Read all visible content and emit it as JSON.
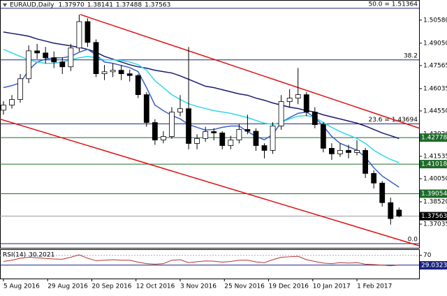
{
  "chart_data": {
    "type": "candlestick",
    "title": "EURAUD,Daily",
    "header_ohlc": [
      {
        "value": 1.3797,
        "label": "1.37970"
      },
      1.38141,
      1.37488,
      1.37563
    ],
    "xlim": [
      -0.41,
      49.38
    ],
    "ylim": [
      1.3546,
      1.5187
    ],
    "xticks": [
      {
        "value": 0,
        "label": "5 Aug 2016"
      },
      {
        "value": 5.25,
        "label": "29 Aug 2016"
      },
      {
        "value": 10.5,
        "label": "20 Sep 2016"
      },
      {
        "value": 15.75,
        "label": "12 Oct 2016"
      },
      {
        "value": 21,
        "label": "3 Nov 2016"
      },
      {
        "value": 26.25,
        "label": "25 Nov 2016"
      },
      {
        "value": 31.5,
        "label": "19 Dec 2016"
      },
      {
        "value": 36.75,
        "label": "10 Jan 2017"
      },
      {
        "value": 42,
        "label": "1 Feb 2017"
      }
    ],
    "yticks": [
      {
        "value": 1.5058,
        "label": "1.50580"
      },
      {
        "value": 1.4905,
        "label": "1.49050"
      },
      1.47565,
      1.46035,
      {
        "value": 1.4455,
        "label": "1.44550"
      },
      {
        "value": 1.4302,
        "label": "1.43020"
      },
      1.41535,
      {
        "value": 1.4005,
        "label": "1.40050"
      },
      {
        "value": 1.3852,
        "label": "1.38520"
      },
      1.37035
    ],
    "candles": [
      [
        1.446,
        1.452,
        1.443,
        1.4494
      ],
      [
        1.4494,
        1.456,
        1.447,
        1.4531
      ],
      [
        1.4531,
        1.47,
        1.451,
        1.4669
      ],
      [
        1.4669,
        1.489,
        1.464,
        1.4854
      ],
      [
        1.4854,
        1.49,
        1.48,
        1.484
      ],
      [
        1.484,
        1.488,
        1.477,
        1.4808
      ],
      [
        1.4808,
        1.485,
        1.474,
        1.478
      ],
      [
        1.478,
        1.481,
        1.47,
        1.4748
      ],
      [
        1.4748,
        1.49,
        1.472,
        1.4873
      ],
      [
        1.4873,
        1.5095,
        1.485,
        1.5048
      ],
      [
        1.5048,
        1.507,
        1.488,
        1.491
      ],
      [
        1.491,
        1.493,
        1.468,
        1.4702
      ],
      [
        1.4702,
        1.476,
        1.466,
        1.4715
      ],
      [
        1.4715,
        1.477,
        1.468,
        1.4725
      ],
      [
        1.4725,
        1.476,
        1.466,
        1.4702
      ],
      [
        1.4702,
        1.473,
        1.465,
        1.469
      ],
      [
        1.469,
        1.47,
        1.454,
        1.4563
      ],
      [
        1.4563,
        1.458,
        1.435,
        1.4378
      ],
      [
        1.4378,
        1.44,
        1.423,
        1.4262
      ],
      [
        1.4262,
        1.432,
        1.424,
        1.4285
      ],
      [
        1.4285,
        1.448,
        1.427,
        1.4447
      ],
      [
        1.4447,
        1.456,
        1.442,
        1.447
      ],
      [
        1.447,
        1.488,
        1.42,
        1.4239
      ],
      [
        1.4239,
        1.43,
        1.42,
        1.4272
      ],
      [
        1.4272,
        1.435,
        1.425,
        1.4318
      ],
      [
        1.4318,
        1.434,
        1.426,
        1.4309
      ],
      [
        1.4309,
        1.432,
        1.42,
        1.4225
      ],
      [
        1.4225,
        1.429,
        1.42,
        1.4262
      ],
      [
        1.4262,
        1.437,
        1.424,
        1.4332
      ],
      [
        1.4332,
        1.443,
        1.43,
        1.432
      ],
      [
        1.432,
        1.434,
        1.419,
        1.4225
      ],
      [
        1.4225,
        1.424,
        1.414,
        1.4193
      ],
      [
        1.4193,
        1.438,
        1.417,
        1.4355
      ],
      [
        1.4355,
        1.456,
        1.433,
        1.4517
      ],
      [
        1.4517,
        1.46,
        1.448,
        1.454
      ],
      [
        1.454,
        1.474,
        1.45,
        1.4563
      ],
      [
        1.4563,
        1.458,
        1.442,
        1.4447
      ],
      [
        1.4447,
        1.448,
        1.434,
        1.4364
      ],
      [
        1.4364,
        1.438,
        1.418,
        1.4207
      ],
      [
        1.4207,
        1.424,
        1.413,
        1.417
      ],
      [
        1.417,
        1.424,
        1.415,
        1.4193
      ],
      [
        1.4193,
        1.423,
        1.414,
        1.4179
      ],
      [
        1.4179,
        1.426,
        1.416,
        1.4193
      ],
      [
        1.4193,
        1.421,
        1.401,
        1.404
      ],
      [
        1.404,
        1.406,
        1.394,
        1.3976
      ],
      [
        1.3976,
        1.399,
        1.382,
        1.3846
      ],
      [
        1.3846,
        1.388,
        1.37,
        1.374
      ],
      [
        1.3797,
        1.38141,
        1.37488,
        1.37563
      ]
    ],
    "series": [
      {
        "color": "#1a1a6e",
        "values": [
          1.4979,
          1.497,
          1.4961,
          1.4951,
          1.4933,
          1.4919,
          1.4905,
          1.4896,
          1.4887,
          1.4877,
          1.4864,
          1.4845,
          1.4817,
          1.4799,
          1.478,
          1.4762,
          1.4748,
          1.4739,
          1.4725,
          1.4716,
          1.4707,
          1.4688,
          1.4665,
          1.4642,
          1.4619,
          1.461,
          1.4596,
          1.4582,
          1.4568,
          1.4559,
          1.454,
          1.4526,
          1.4508,
          1.4494,
          1.448,
          1.4471,
          1.4457,
          1.4448,
          1.4429,
          1.4415,
          1.4402,
          1.4388,
          1.4374,
          1.4355,
          1.4332,
          1.4309,
          1.4291,
          1.4272
        ]
      },
      {
        "color": "#3a5fc8",
        "values": [
          1.461,
          1.4623,
          1.4642,
          1.4725,
          1.478,
          1.4799,
          1.4808,
          1.4808,
          1.4817,
          1.4845,
          1.4864,
          1.4827,
          1.478,
          1.4771,
          1.4757,
          1.4743,
          1.4716,
          1.461,
          1.4494,
          1.4457,
          1.4425,
          1.4402,
          1.4365,
          1.4346,
          1.4328,
          1.4332,
          1.4346,
          1.4355,
          1.4355,
          1.4318,
          1.4286,
          1.4263,
          1.43,
          1.4379,
          1.4411,
          1.4439,
          1.4448,
          1.4411,
          1.4355,
          1.4286,
          1.424,
          1.4217,
          1.4194,
          1.4148,
          1.4078,
          1.4023,
          1.3986,
          1.3949
        ]
      },
      {
        "color": "#2fd9e8",
        "values": [
          1.4864,
          1.4841,
          1.4817,
          1.4794,
          1.478,
          1.4771,
          1.4771,
          1.478,
          1.4794,
          1.4808,
          1.4817,
          1.4808,
          1.4794,
          1.4794,
          1.479,
          1.478,
          1.4762,
          1.4725,
          1.4656,
          1.461,
          1.4563,
          1.4531,
          1.4503,
          1.4485,
          1.4471,
          1.4457,
          1.4448,
          1.4439,
          1.4425,
          1.4411,
          1.4392,
          1.4374,
          1.4365,
          1.4379,
          1.4402,
          1.442,
          1.4425,
          1.4411,
          1.4379,
          1.4346,
          1.4318,
          1.4295,
          1.4272,
          1.424,
          1.4194,
          1.4161,
          1.4133,
          1.4111
        ]
      }
    ],
    "trendlines": [
      {
        "color": "#e01010",
        "x": [
          9.13,
          49.38
        ],
        "y": [
          1.5095,
          1.4341
        ]
      },
      {
        "color": "#e01010",
        "x": [
          -0.41,
          49.38
        ],
        "y": [
          1.4401,
          1.356
        ]
      }
    ],
    "fib_levels": [
      {
        "label": "50.0 = 1.51364",
        "value": 1.51364
      },
      {
        "label": "38.2",
        "value": 1.4794
      },
      {
        "label": "23.6 = 1.43694",
        "value": 1.43694
      },
      {
        "label": "0.0",
        "value": 1.3574
      }
    ],
    "fib_color": "#1a237e",
    "levels": [
      1.42778,
      1.41018,
      1.39054
    ],
    "level_color": "#1e6b2a",
    "price_line": 1.37563,
    "rsi": {
      "label": "RSI(14)",
      "current": 30.2021,
      "color": "#b8312f",
      "ylim": [
        -25,
        92
      ],
      "yticks": [
        70
      ],
      "levels": [
        70,
        30
      ],
      "marker": 29.0323,
      "values": [
        45,
        50,
        58,
        62,
        60,
        57,
        55,
        54,
        62,
        72,
        58,
        48,
        50,
        52,
        50,
        50,
        42,
        36,
        34,
        36,
        50,
        52,
        40,
        44,
        47,
        46,
        42,
        45,
        50,
        50,
        43,
        40,
        52,
        62,
        64,
        66,
        52,
        45,
        38,
        36,
        40,
        38,
        40,
        34,
        32,
        30,
        27,
        30.2021
      ]
    }
  }
}
